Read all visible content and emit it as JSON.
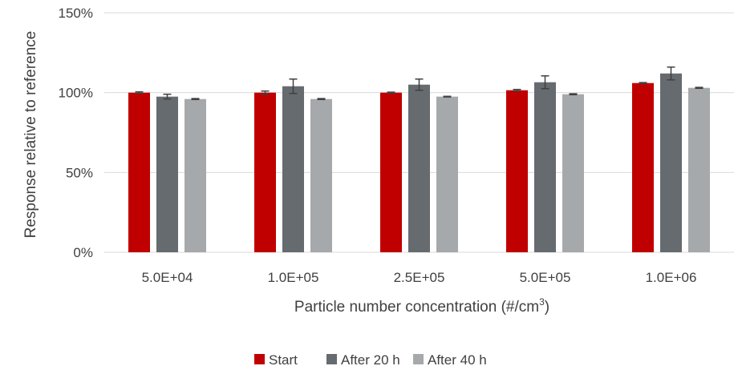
{
  "chart_data": {
    "type": "bar",
    "title": "",
    "xlabel": "Particle number concentration (#/cm³)",
    "xlabel_parts": {
      "base": "Particle number concentration (#/cm",
      "sup": "3",
      "tail": ")"
    },
    "ylabel": "Response relative to reference",
    "ylim": [
      0,
      150
    ],
    "yticks": [
      0,
      50,
      100,
      150
    ],
    "ytick_labels": [
      "0%",
      "50%",
      "100%",
      "150%"
    ],
    "grid": true,
    "legend_position": "bottom",
    "categories": [
      "5.0E+04",
      "1.0E+05",
      "2.5E+05",
      "5.0E+05",
      "1.0E+06"
    ],
    "series": [
      {
        "name": "Start",
        "color": "#c00000",
        "values": [
          100,
          100,
          100,
          101.5,
          106
        ],
        "errors": [
          0.5,
          1.0,
          0.3,
          0.5,
          0.3
        ]
      },
      {
        "name": "After 20 h",
        "color": "#666b70",
        "values": [
          97.5,
          104,
          105,
          106.5,
          112
        ],
        "errors": [
          1.5,
          4.5,
          3.5,
          4.0,
          4.0
        ]
      },
      {
        "name": "After 40 h",
        "color": "#a6a9ab",
        "values": [
          96,
          96,
          97.5,
          99,
          103
        ],
        "errors": [
          0.3,
          0.3,
          0.2,
          0.3,
          0.3
        ]
      }
    ]
  }
}
